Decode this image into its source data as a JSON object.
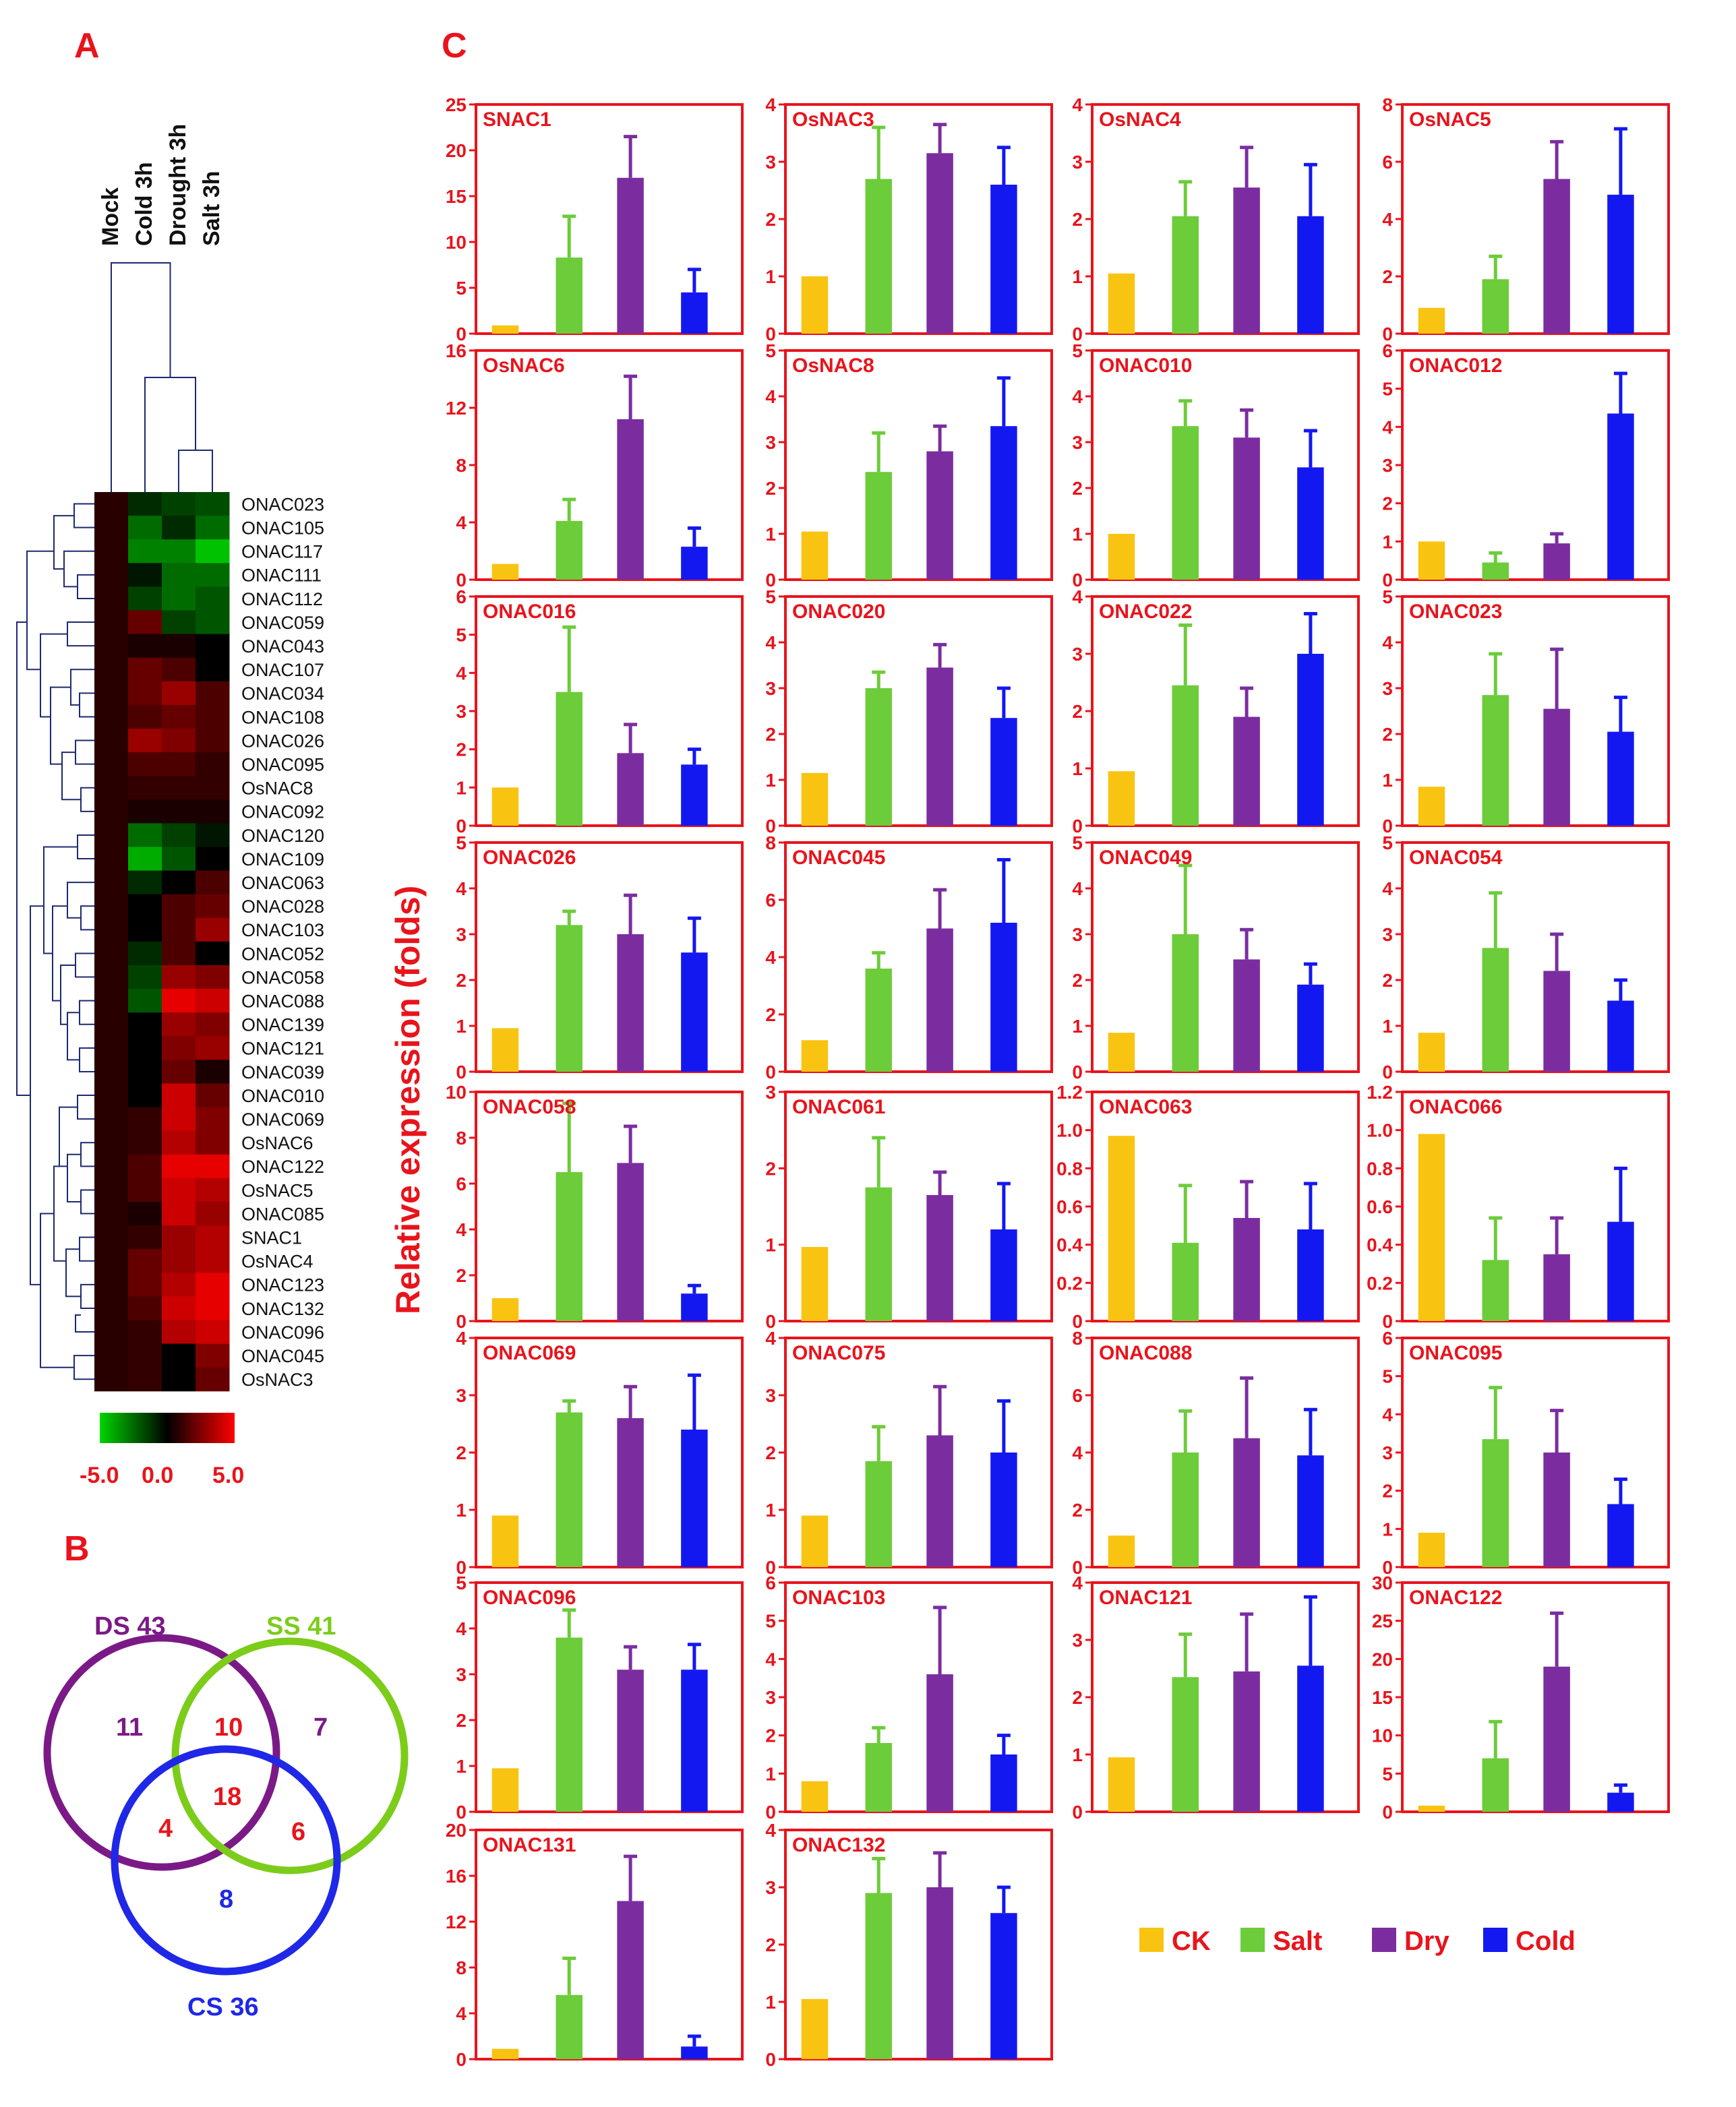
{
  "panels": {
    "a": "A",
    "b": "B",
    "c": "C"
  },
  "colors": {
    "axis": "#e8141c",
    "CK": "#f8c411",
    "Salt": "#6ccc3a",
    "Dry": "#7b2da0",
    "Cold": "#1418f0",
    "dendrogram": "#1c2a70"
  },
  "heatmap": {
    "columns": [
      "Mock",
      "Cold 3h",
      "Drought 3h",
      "Salt 3h"
    ],
    "rows": [
      "ONAC023",
      "ONAC105",
      "ONAC117",
      "ONAC111",
      "ONAC112",
      "ONAC059",
      "ONAC043",
      "ONAC107",
      "ONAC034",
      "ONAC108",
      "ONAC026",
      "ONAC095",
      "OsNAC8",
      "ONAC092",
      "ONAC120",
      "ONAC109",
      "ONAC063",
      "ONAC028",
      "ONAC103",
      "ONAC052",
      "ONAC058",
      "ONAC088",
      "ONAC139",
      "ONAC121",
      "ONAC039",
      "ONAC010",
      "ONAC069",
      "OsNAC6",
      "ONAC122",
      "OsNAC5",
      "ONAC085",
      "SNAC1",
      "OsNAC4",
      "ONAC123",
      "ONAC132",
      "ONAC096",
      "ONAC045",
      "OsNAC3"
    ],
    "values": [
      [
        0.8,
        -1.0,
        -1.5,
        -1.8
      ],
      [
        0.8,
        -2.5,
        -1.0,
        -2.5
      ],
      [
        0.8,
        -3.0,
        -3.0,
        -4.5
      ],
      [
        0.8,
        -0.5,
        -2.5,
        -2.5
      ],
      [
        0.8,
        -1.5,
        -2.5,
        -2.0
      ],
      [
        0.8,
        2.0,
        -1.5,
        -2.0
      ],
      [
        0.8,
        0.5,
        0.5,
        0.0
      ],
      [
        0.8,
        2.0,
        1.5,
        0.0
      ],
      [
        0.8,
        2.0,
        3.0,
        1.5
      ],
      [
        0.8,
        1.5,
        2.0,
        1.5
      ],
      [
        0.8,
        3.0,
        2.5,
        1.5
      ],
      [
        0.8,
        1.5,
        1.5,
        1.0
      ],
      [
        0.8,
        1.0,
        1.0,
        1.0
      ],
      [
        0.8,
        0.5,
        0.5,
        0.5
      ],
      [
        0.8,
        -2.5,
        -1.5,
        -0.5
      ],
      [
        0.8,
        -4.0,
        -2.0,
        0.0
      ],
      [
        0.8,
        -1.0,
        0.0,
        1.5
      ],
      [
        0.8,
        0.0,
        1.5,
        2.0
      ],
      [
        0.8,
        0.0,
        1.5,
        3.0
      ],
      [
        0.8,
        -1.0,
        1.5,
        0.0
      ],
      [
        0.8,
        -1.5,
        3.0,
        2.5
      ],
      [
        0.8,
        -2.0,
        4.5,
        4.0
      ],
      [
        0.8,
        0.0,
        3.0,
        2.5
      ],
      [
        0.8,
        0.0,
        2.5,
        3.0
      ],
      [
        0.8,
        0.0,
        2.0,
        0.5
      ],
      [
        0.8,
        0.0,
        4.0,
        2.0
      ],
      [
        0.8,
        1.0,
        4.0,
        2.5
      ],
      [
        0.8,
        1.0,
        3.5,
        2.5
      ],
      [
        0.8,
        1.5,
        4.5,
        4.5
      ],
      [
        0.8,
        1.5,
        4.0,
        3.5
      ],
      [
        0.8,
        0.5,
        4.0,
        3.0
      ],
      [
        0.8,
        1.0,
        3.0,
        3.5
      ],
      [
        0.8,
        2.0,
        3.0,
        3.5
      ],
      [
        0.8,
        2.0,
        3.5,
        4.5
      ],
      [
        0.8,
        1.5,
        4.0,
        4.5
      ],
      [
        0.8,
        1.0,
        3.5,
        4.0
      ],
      [
        0.8,
        1.0,
        0.0,
        2.5
      ],
      [
        0.8,
        1.0,
        0.0,
        2.0
      ]
    ],
    "scale": {
      "min": -5.0,
      "mid": 0.0,
      "max": 5.0,
      "labels": [
        "-5.0",
        "0.0",
        "5.0"
      ]
    }
  },
  "venn": {
    "sets": [
      {
        "label": "DS 43",
        "color": "#7b1a86"
      },
      {
        "label": "SS 41",
        "color": "#7ccc1a"
      },
      {
        "label": "CS 36",
        "color": "#1f28e6"
      }
    ],
    "regions": [
      {
        "region": "DS only",
        "value": "11",
        "color": "#7b1a86"
      },
      {
        "region": "DS and SS",
        "value": "10",
        "color": "#e8141c"
      },
      {
        "region": "SS only",
        "value": "7",
        "color": "#7b1a86"
      },
      {
        "region": "all three",
        "value": "18",
        "color": "#e8141c"
      },
      {
        "region": "DS and CS",
        "value": "4",
        "color": "#e8141c"
      },
      {
        "region": "SS and CS",
        "value": "6",
        "color": "#e8141c"
      },
      {
        "region": "CS only",
        "value": "8",
        "color": "#1f28e6"
      }
    ]
  },
  "chart_data": {
    "type": "bar",
    "ylabel": "Relative expression (folds)",
    "categories": [
      "CK",
      "Salt",
      "Dry",
      "Cold"
    ],
    "legend": [
      "CK",
      "Salt",
      "Dry",
      "Cold"
    ],
    "charts": [
      {
        "gene": "SNAC1",
        "ymax": 25,
        "ticks": [
          0,
          5,
          10,
          15,
          20,
          25
        ],
        "values": [
          0.9,
          8.3,
          17.0,
          4.5
        ],
        "errors": [
          0,
          4.5,
          4.5,
          2.5
        ]
      },
      {
        "gene": "OsNAC3",
        "ymax": 4,
        "ticks": [
          0,
          1,
          2,
          3,
          4
        ],
        "values": [
          1.0,
          2.7,
          3.15,
          2.6
        ],
        "errors": [
          0,
          0.9,
          0.5,
          0.65
        ]
      },
      {
        "gene": "OsNAC4",
        "ymax": 4,
        "ticks": [
          0,
          1,
          2,
          3,
          4
        ],
        "values": [
          1.05,
          2.05,
          2.55,
          2.05
        ],
        "errors": [
          0,
          0.6,
          0.7,
          0.9
        ]
      },
      {
        "gene": "OsNAC5",
        "ymax": 8,
        "ticks": [
          0,
          2,
          4,
          6,
          8
        ],
        "values": [
          0.9,
          1.9,
          5.4,
          4.85
        ],
        "errors": [
          0,
          0.8,
          1.3,
          2.3
        ]
      },
      {
        "gene": "OsNAC6",
        "ymax": 16,
        "ticks": [
          0,
          4,
          8,
          12,
          16
        ],
        "values": [
          1.1,
          4.1,
          11.2,
          2.3
        ],
        "errors": [
          0,
          1.5,
          3.0,
          1.3
        ]
      },
      {
        "gene": "OsNAC8",
        "ymax": 5,
        "ticks": [
          0,
          1,
          2,
          3,
          4,
          5
        ],
        "values": [
          1.05,
          2.35,
          2.8,
          3.35
        ],
        "errors": [
          0,
          0.85,
          0.55,
          1.05
        ]
      },
      {
        "gene": "ONAC010",
        "ymax": 5,
        "ticks": [
          0,
          1,
          2,
          3,
          4,
          5
        ],
        "values": [
          1.0,
          3.35,
          3.1,
          2.45
        ],
        "errors": [
          0,
          0.55,
          0.6,
          0.8
        ]
      },
      {
        "gene": "ONAC012",
        "ymax": 6,
        "ticks": [
          0,
          1,
          2,
          3,
          4,
          5,
          6
        ],
        "values": [
          1.0,
          0.45,
          0.95,
          4.35
        ],
        "errors": [
          0,
          0.25,
          0.25,
          1.05
        ]
      },
      {
        "gene": "ONAC016",
        "ymax": 6,
        "ticks": [
          0,
          1,
          2,
          3,
          4,
          5,
          6
        ],
        "values": [
          1.0,
          3.5,
          1.9,
          1.6
        ],
        "errors": [
          0,
          1.7,
          0.75,
          0.4
        ]
      },
      {
        "gene": "ONAC020",
        "ymax": 5,
        "ticks": [
          0,
          1,
          2,
          3,
          4,
          5
        ],
        "values": [
          1.15,
          3.0,
          3.45,
          2.35
        ],
        "errors": [
          0,
          0.35,
          0.5,
          0.65
        ]
      },
      {
        "gene": "ONAC022",
        "ymax": 4,
        "ticks": [
          0,
          1,
          2,
          3,
          4
        ],
        "values": [
          0.95,
          2.45,
          1.9,
          3.0
        ],
        "errors": [
          0,
          1.05,
          0.5,
          0.7
        ]
      },
      {
        "gene": "ONAC023",
        "ymax": 5,
        "ticks": [
          0,
          1,
          2,
          3,
          4,
          5
        ],
        "values": [
          0.85,
          2.85,
          2.55,
          2.05
        ],
        "errors": [
          0,
          0.9,
          1.3,
          0.75
        ]
      },
      {
        "gene": "ONAC026",
        "ymax": 5,
        "ticks": [
          0,
          1,
          2,
          3,
          4,
          5
        ],
        "values": [
          0.95,
          3.2,
          3.0,
          2.6
        ],
        "errors": [
          0,
          0.3,
          0.85,
          0.75
        ]
      },
      {
        "gene": "ONAC045",
        "ymax": 8,
        "ticks": [
          0,
          2,
          4,
          6,
          8
        ],
        "values": [
          1.1,
          3.6,
          5.0,
          5.2
        ],
        "errors": [
          0,
          0.55,
          1.35,
          2.2
        ]
      },
      {
        "gene": "ONAC049",
        "ymax": 5,
        "ticks": [
          0,
          1,
          2,
          3,
          4,
          5
        ],
        "values": [
          0.85,
          3.0,
          2.45,
          1.9
        ],
        "errors": [
          0,
          1.5,
          0.65,
          0.45
        ]
      },
      {
        "gene": "ONAC054",
        "ymax": 5,
        "ticks": [
          0,
          1,
          2,
          3,
          4,
          5
        ],
        "values": [
          0.85,
          2.7,
          2.2,
          1.55
        ],
        "errors": [
          0,
          1.2,
          0.8,
          0.45
        ]
      },
      {
        "gene": "ONAC058",
        "ymax": 10,
        "ticks": [
          0,
          2,
          4,
          6,
          8,
          10
        ],
        "values": [
          1.0,
          6.5,
          6.9,
          1.2
        ],
        "errors": [
          0,
          3.0,
          1.6,
          0.35
        ]
      },
      {
        "gene": "ONAC061",
        "ymax": 3,
        "ticks": [
          0,
          1,
          2,
          3
        ],
        "values": [
          0.97,
          1.75,
          1.65,
          1.2
        ],
        "errors": [
          0,
          0.65,
          0.3,
          0.6
        ]
      },
      {
        "gene": "ONAC063",
        "ymax": 1.2,
        "ticks": [
          0,
          0.2,
          0.4,
          0.6,
          0.8,
          1.0,
          1.2
        ],
        "values": [
          0.97,
          0.41,
          0.54,
          0.48
        ],
        "errors": [
          0,
          0.3,
          0.19,
          0.24
        ]
      },
      {
        "gene": "ONAC066",
        "ymax": 1.2,
        "ticks": [
          0,
          0.2,
          0.4,
          0.6,
          0.8,
          1.0,
          1.2
        ],
        "values": [
          0.98,
          0.32,
          0.35,
          0.52
        ],
        "errors": [
          0,
          0.22,
          0.19,
          0.28
        ]
      },
      {
        "gene": "ONAC069",
        "ymax": 4,
        "ticks": [
          0,
          1,
          2,
          3,
          4
        ],
        "values": [
          0.9,
          2.7,
          2.6,
          2.4
        ],
        "errors": [
          0,
          0.2,
          0.55,
          0.95
        ]
      },
      {
        "gene": "ONAC075",
        "ymax": 4,
        "ticks": [
          0,
          1,
          2,
          3,
          4
        ],
        "values": [
          0.9,
          1.85,
          2.3,
          2.0
        ],
        "errors": [
          0,
          0.6,
          0.85,
          0.9
        ]
      },
      {
        "gene": "ONAC088",
        "ymax": 8,
        "ticks": [
          0,
          2,
          4,
          6,
          8
        ],
        "values": [
          1.1,
          4.0,
          4.5,
          3.9
        ],
        "errors": [
          0,
          1.45,
          2.1,
          1.6
        ]
      },
      {
        "gene": "ONAC095",
        "ymax": 6,
        "ticks": [
          0,
          1,
          2,
          3,
          4,
          5,
          6
        ],
        "values": [
          0.9,
          3.35,
          3.0,
          1.65
        ],
        "errors": [
          0,
          1.35,
          1.1,
          0.65
        ]
      },
      {
        "gene": "ONAC096",
        "ymax": 5,
        "ticks": [
          0,
          1,
          2,
          3,
          4,
          5
        ],
        "values": [
          0.95,
          3.8,
          3.1,
          3.1
        ],
        "errors": [
          0,
          0.6,
          0.5,
          0.55
        ]
      },
      {
        "gene": "ONAC103",
        "ymax": 6,
        "ticks": [
          0,
          1,
          2,
          3,
          4,
          5,
          6
        ],
        "values": [
          0.8,
          1.8,
          3.6,
          1.5
        ],
        "errors": [
          0,
          0.4,
          1.75,
          0.5
        ]
      },
      {
        "gene": "ONAC121",
        "ymax": 4,
        "ticks": [
          0,
          1,
          2,
          3,
          4
        ],
        "values": [
          0.95,
          2.35,
          2.45,
          2.55
        ],
        "errors": [
          0,
          0.75,
          1.0,
          1.2
        ]
      },
      {
        "gene": "ONAC122",
        "ymax": 30,
        "ticks": [
          0,
          5,
          10,
          15,
          20,
          25,
          30
        ],
        "values": [
          0.8,
          7.0,
          19.0,
          2.5
        ],
        "errors": [
          0,
          4.8,
          7.0,
          1.0
        ]
      },
      {
        "gene": "ONAC131",
        "ymax": 20,
        "ticks": [
          0,
          4,
          8,
          12,
          16,
          20
        ],
        "values": [
          0.9,
          5.6,
          13.8,
          1.1
        ],
        "errors": [
          0,
          3.2,
          3.9,
          0.9
        ]
      },
      {
        "gene": "ONAC132",
        "ymax": 4,
        "ticks": [
          0,
          1,
          2,
          3,
          4
        ],
        "values": [
          1.05,
          2.9,
          3.0,
          2.55
        ],
        "errors": [
          0,
          0.6,
          0.6,
          0.45
        ]
      }
    ]
  }
}
